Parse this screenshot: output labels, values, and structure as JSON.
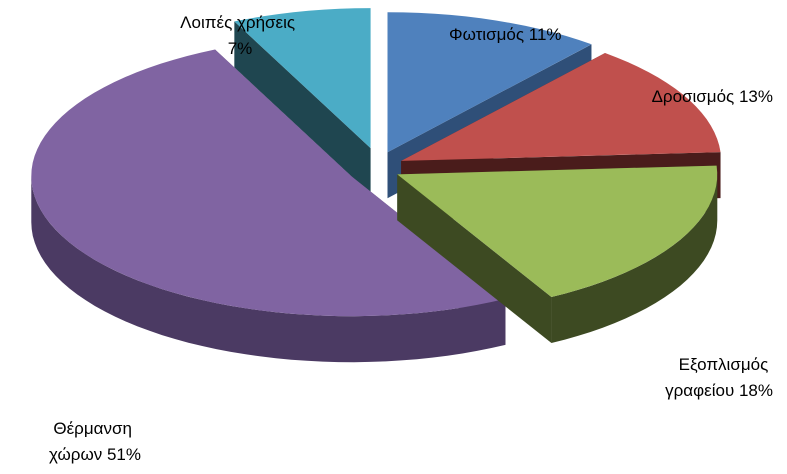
{
  "chart_data": {
    "type": "pie",
    "title": "",
    "style": "3d-exploded",
    "slices": [
      {
        "label": "Φωτισμός 11%",
        "value": 11,
        "color": "#4f81bd",
        "side_color": "#2f4f78"
      },
      {
        "label": "Δροσισμός 13%",
        "value": 13,
        "color": "#c0504d",
        "side_color": "#4a1c1b"
      },
      {
        "label": "Εξοπλισμός γραφείου 18%",
        "value": 18,
        "color": "#9bbb59",
        "side_color": "#3d4a22"
      },
      {
        "label": "Θέρμανση χώρων 51%",
        "value": 51,
        "color": "#8064a2",
        "side_color": "#4b3a63"
      },
      {
        "label": "Λοιπές χρήσεις 7%",
        "value": 7,
        "color": "#4bacc6",
        "side_color": "#1f4650"
      }
    ],
    "label_lines": {
      "lighting": [
        "Φωτισμός 11%"
      ],
      "cooling": [
        "Δροσισμός 13%"
      ],
      "equipment": [
        "Εξοπλισμός",
        "γραφείου 18%"
      ],
      "heating": [
        "Θέρμανση",
        "χώρων 51%"
      ],
      "other": [
        "Λοιπές χρήσεις",
        "7%"
      ]
    }
  }
}
